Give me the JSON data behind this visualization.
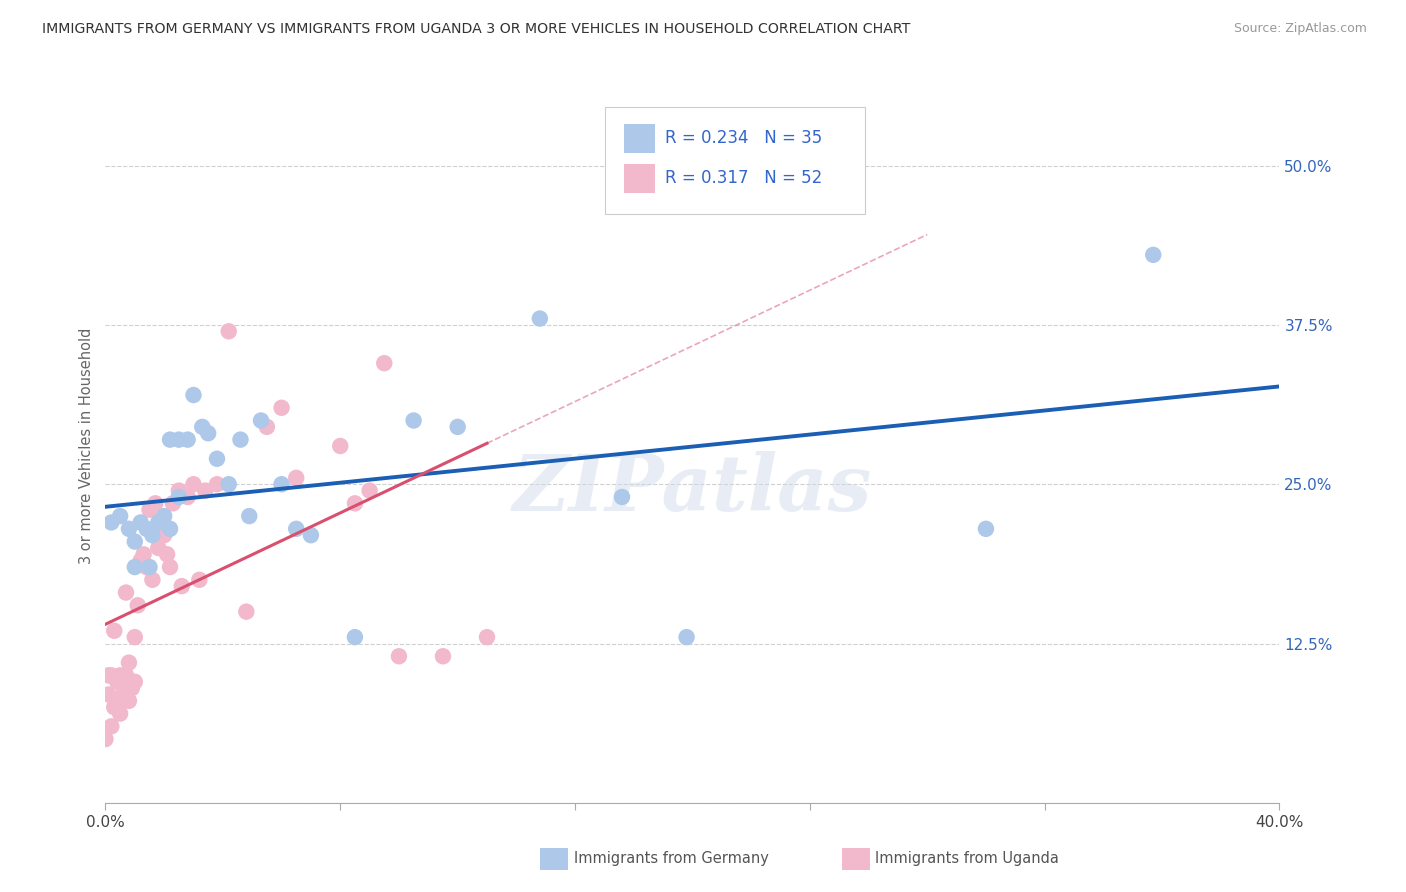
{
  "title": "IMMIGRANTS FROM GERMANY VS IMMIGRANTS FROM UGANDA 3 OR MORE VEHICLES IN HOUSEHOLD CORRELATION CHART",
  "source": "Source: ZipAtlas.com",
  "ylabel": "3 or more Vehicles in Household",
  "xlim": [
    0.0,
    0.4
  ],
  "ylim": [
    0.0,
    0.56
  ],
  "R_germany": 0.234,
  "N_germany": 35,
  "R_uganda": 0.317,
  "N_uganda": 52,
  "germany_color": "#adc8e8",
  "uganda_color": "#f2b8cc",
  "germany_line_color": "#1a5fb4",
  "uganda_line_color": "#d94f6e",
  "watermark": "ZIPatlas",
  "germany_x": [
    0.002,
    0.005,
    0.008,
    0.01,
    0.01,
    0.012,
    0.014,
    0.015,
    0.016,
    0.018,
    0.02,
    0.022,
    0.022,
    0.025,
    0.025,
    0.028,
    0.03,
    0.033,
    0.035,
    0.038,
    0.042,
    0.046,
    0.049,
    0.053,
    0.06,
    0.065,
    0.07,
    0.085,
    0.105,
    0.12,
    0.148,
    0.176,
    0.198,
    0.3,
    0.357
  ],
  "germany_y": [
    0.22,
    0.225,
    0.215,
    0.205,
    0.185,
    0.22,
    0.215,
    0.185,
    0.21,
    0.22,
    0.225,
    0.215,
    0.285,
    0.24,
    0.285,
    0.285,
    0.32,
    0.295,
    0.29,
    0.27,
    0.25,
    0.285,
    0.225,
    0.3,
    0.25,
    0.215,
    0.21,
    0.13,
    0.3,
    0.295,
    0.38,
    0.24,
    0.13,
    0.215,
    0.43
  ],
  "uganda_x": [
    0.0,
    0.001,
    0.001,
    0.002,
    0.002,
    0.003,
    0.003,
    0.004,
    0.004,
    0.005,
    0.005,
    0.006,
    0.006,
    0.007,
    0.007,
    0.008,
    0.008,
    0.009,
    0.01,
    0.01,
    0.011,
    0.012,
    0.013,
    0.014,
    0.015,
    0.016,
    0.017,
    0.018,
    0.019,
    0.02,
    0.021,
    0.022,
    0.023,
    0.025,
    0.026,
    0.028,
    0.03,
    0.032,
    0.034,
    0.038,
    0.042,
    0.048,
    0.055,
    0.06,
    0.065,
    0.08,
    0.085,
    0.09,
    0.095,
    0.1,
    0.115,
    0.13
  ],
  "uganda_y": [
    0.05,
    0.085,
    0.1,
    0.06,
    0.1,
    0.135,
    0.075,
    0.095,
    0.08,
    0.1,
    0.07,
    0.085,
    0.095,
    0.1,
    0.165,
    0.08,
    0.11,
    0.09,
    0.095,
    0.13,
    0.155,
    0.19,
    0.195,
    0.185,
    0.23,
    0.175,
    0.235,
    0.2,
    0.215,
    0.21,
    0.195,
    0.185,
    0.235,
    0.245,
    0.17,
    0.24,
    0.25,
    0.175,
    0.245,
    0.25,
    0.37,
    0.15,
    0.295,
    0.31,
    0.255,
    0.28,
    0.235,
    0.245,
    0.345,
    0.115,
    0.115,
    0.13
  ]
}
